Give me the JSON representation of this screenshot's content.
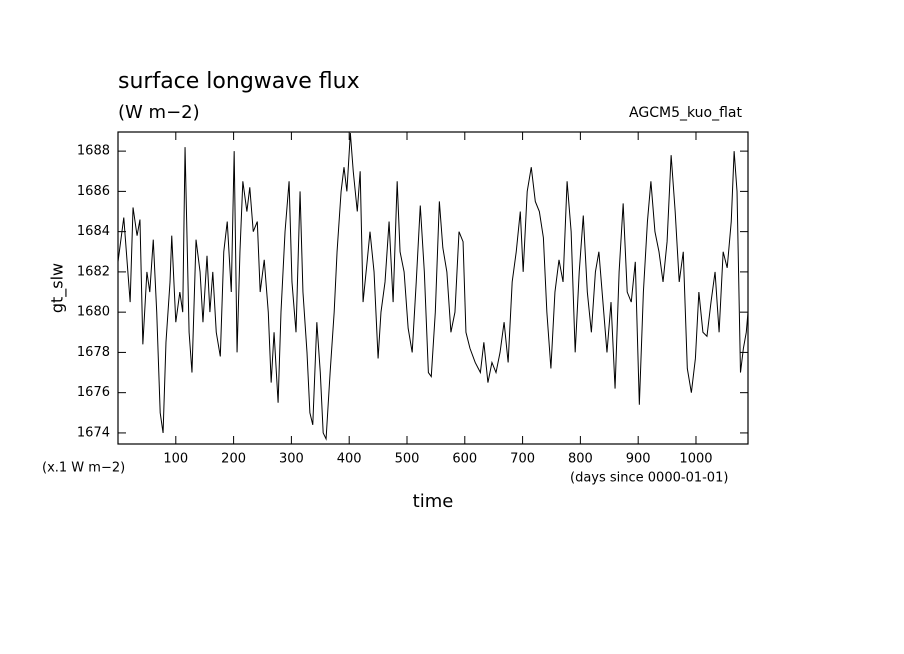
{
  "chart_data": {
    "type": "line",
    "title": "surface longwave flux",
    "subtitle": "(W m−2)",
    "annotation": "AGCM5_kuo_flat",
    "y_label": "gt_slw",
    "y_unit": "(x.1 W m−2)",
    "x_label": "time",
    "x_unit": "(days since 0000-01-01)",
    "xlim": [
      0,
      1090
    ],
    "ylim": [
      1673.45,
      1688.95
    ],
    "xticks": [
      100,
      200,
      300,
      400,
      500,
      600,
      700,
      800,
      900,
      1000
    ],
    "yticks": [
      1674,
      1676,
      1678,
      1680,
      1682,
      1684,
      1686,
      1688
    ],
    "x": [
      0,
      10,
      21,
      26,
      33,
      38,
      43,
      50,
      55,
      61,
      67,
      73,
      78,
      83,
      90,
      93,
      100,
      107,
      112,
      116,
      123,
      128,
      135,
      142,
      147,
      154,
      159,
      164,
      170,
      177,
      183,
      189,
      196,
      201,
      206,
      211,
      216,
      223,
      228,
      234,
      241,
      246,
      253,
      260,
      265,
      270,
      277,
      282,
      289,
      296,
      301,
      308,
      315,
      320,
      327,
      332,
      337,
      344,
      350,
      355,
      360,
      367,
      374,
      379,
      386,
      391,
      396,
      402,
      407,
      414,
      419,
      424,
      431,
      436,
      443,
      450,
      455,
      462,
      469,
      476,
      483,
      488,
      495,
      502,
      509,
      516,
      523,
      530,
      537,
      542,
      549,
      556,
      562,
      569,
      576,
      583,
      590,
      597,
      602,
      609,
      618,
      627,
      633,
      640,
      647,
      654,
      661,
      668,
      675,
      682,
      689,
      696,
      701,
      708,
      715,
      722,
      729,
      736,
      742,
      749,
      756,
      763,
      770,
      777,
      784,
      791,
      798,
      805,
      812,
      819,
      826,
      832,
      839,
      846,
      853,
      860,
      867,
      874,
      881,
      888,
      895,
      902,
      909,
      916,
      922,
      929,
      936,
      943,
      950,
      957,
      964,
      971,
      978,
      985,
      992,
      999,
      1005,
      1012,
      1019,
      1026,
      1033,
      1040,
      1047,
      1054,
      1061,
      1066,
      1071,
      1077,
      1082,
      1087,
      1090
    ],
    "series": [
      {
        "color": "#000000",
        "values": [
          1682.5,
          1684.7,
          1680.5,
          1685.2,
          1683.8,
          1684.6,
          1678.4,
          1682,
          1681,
          1683.6,
          1680,
          1675,
          1674,
          1678.5,
          1681.5,
          1683.8,
          1679.5,
          1681,
          1680,
          1688.2,
          1679,
          1677,
          1683.6,
          1682,
          1679.5,
          1682.8,
          1680,
          1682,
          1679,
          1677.8,
          1683,
          1684.5,
          1681,
          1688,
          1678,
          1683,
          1686.5,
          1685,
          1686.2,
          1684,
          1684.5,
          1681,
          1682.6,
          1680,
          1676.5,
          1679,
          1675.5,
          1680,
          1684,
          1686.5,
          1681.5,
          1679,
          1686,
          1681,
          1678,
          1675,
          1674.4,
          1679.5,
          1677,
          1674,
          1673.7,
          1677,
          1680,
          1683,
          1686,
          1687.2,
          1686,
          1688.9,
          1687,
          1685,
          1687,
          1680.5,
          1682.5,
          1684,
          1682,
          1677.7,
          1680,
          1681.5,
          1684.5,
          1680.5,
          1686.5,
          1683,
          1682,
          1679.2,
          1678,
          1681.5,
          1685.3,
          1682,
          1677,
          1676.8,
          1680,
          1685.5,
          1683.2,
          1682,
          1679,
          1680,
          1684,
          1683.5,
          1679,
          1678.2,
          1677.5,
          1677,
          1678.5,
          1676.5,
          1677.5,
          1677,
          1678,
          1679.5,
          1677.5,
          1681.5,
          1683,
          1685,
          1682,
          1686,
          1687.2,
          1685.5,
          1685,
          1683.7,
          1680,
          1677.2,
          1681,
          1682.6,
          1681.5,
          1686.5,
          1684,
          1678,
          1682,
          1684.8,
          1681,
          1679,
          1682,
          1683,
          1680.5,
          1678,
          1680.5,
          1676.2,
          1682,
          1685.4,
          1681,
          1680.5,
          1682.5,
          1675.4,
          1681,
          1684.5,
          1686.5,
          1684,
          1683,
          1681.5,
          1683.5,
          1687.8,
          1685,
          1681.5,
          1683,
          1677.2,
          1676,
          1677.7,
          1681,
          1679,
          1678.8,
          1680.5,
          1682,
          1679,
          1683,
          1682.2,
          1684.5,
          1688,
          1686,
          1677,
          1678.2,
          1679,
          1680
        ]
      }
    ]
  }
}
